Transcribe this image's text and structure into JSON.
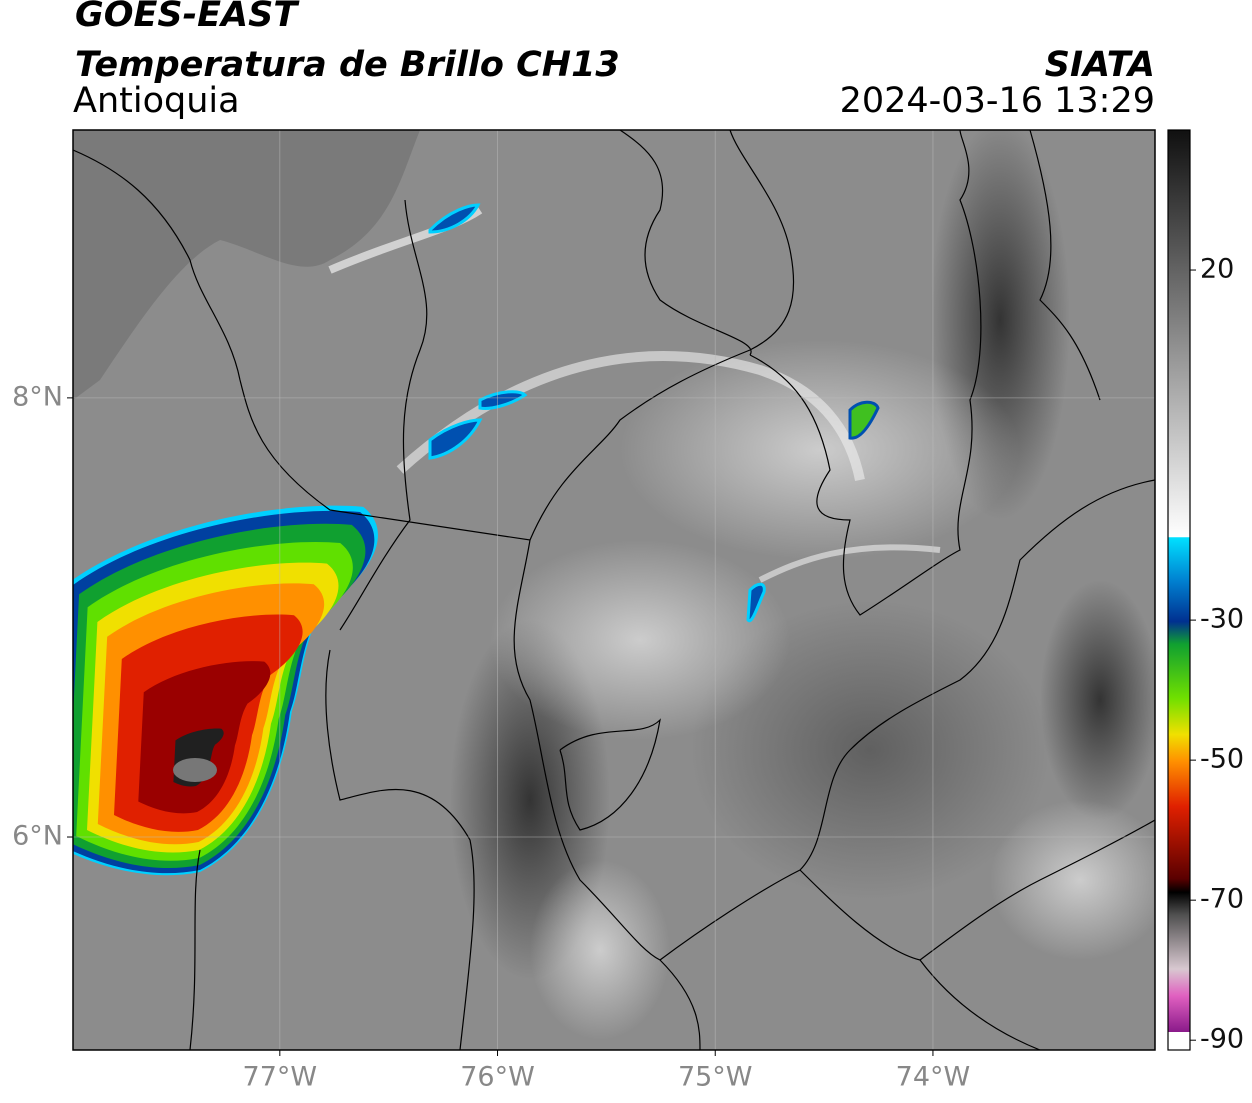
{
  "header": {
    "title": "GOES-EAST",
    "subtitle": "Temperatura de Brillo CH13",
    "region": "Antioquia",
    "source": "SIATA",
    "timestamp": "2024-03-16 13:29"
  },
  "map": {
    "xlim": [
      -77.95,
      -72.98
    ],
    "ylim": [
      5.03,
      9.22
    ],
    "xticks": [
      {
        "value": -77,
        "label": "77°W"
      },
      {
        "value": -76,
        "label": "76°W"
      },
      {
        "value": -75,
        "label": "75°W"
      },
      {
        "value": -74,
        "label": "74°W"
      }
    ],
    "yticks": [
      {
        "value": 6,
        "label": "6°N"
      },
      {
        "value": 8,
        "label": "8°N"
      }
    ],
    "grid": true
  },
  "colorbar": {
    "lim": [
      -91.4,
      40
    ],
    "ticks": [
      -90,
      -70,
      -50,
      -30,
      20
    ]
  }
}
